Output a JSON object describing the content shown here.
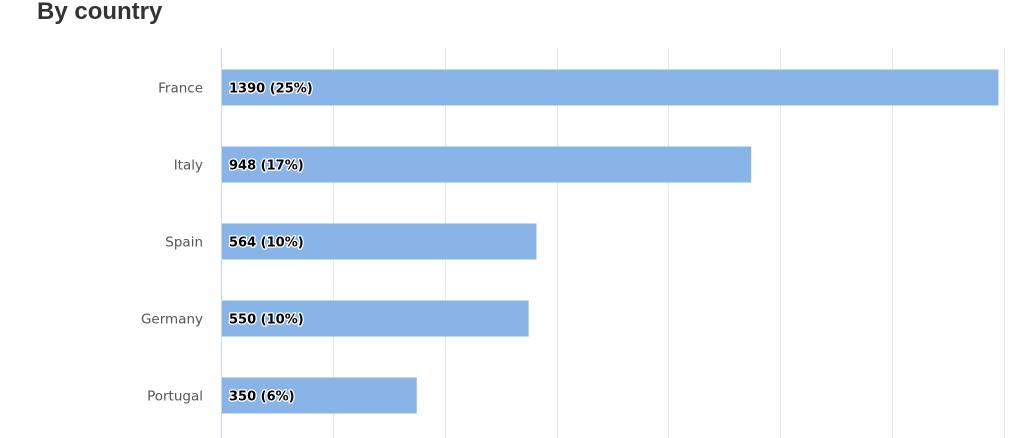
{
  "title": "By country",
  "colors": {
    "bar": "#88b4e7",
    "grid": "#e6e6e6",
    "axis": "#ccd6eb"
  },
  "chart_data": {
    "type": "bar",
    "orientation": "horizontal",
    "title": "By country",
    "categories": [
      "France",
      "Italy",
      "Spain",
      "Germany",
      "Portugal"
    ],
    "values": [
      1390,
      948,
      564,
      550,
      350
    ],
    "data_labels": [
      "1390 (25%)",
      "948 (17%)",
      "564 (10%)",
      "550 (10%)",
      "350 (6%)"
    ],
    "xlim": [
      0,
      1400
    ],
    "grid": true,
    "legend": "none"
  }
}
